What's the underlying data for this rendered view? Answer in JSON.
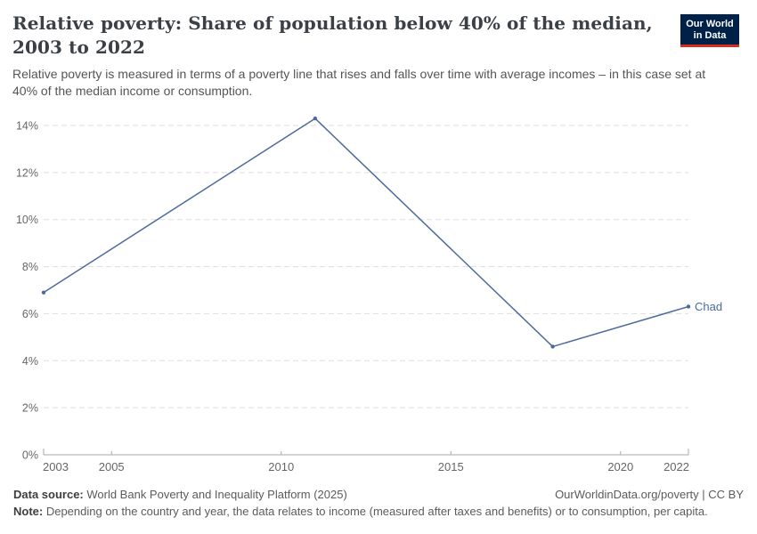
{
  "header": {
    "title": "Relative poverty: Share of population below 40% of the median, 2003 to 2022",
    "subtitle": "Relative poverty is measured in terms of a poverty line that rises and falls over time with average incomes – in this case set at 40% of the median income or consumption.",
    "logo": {
      "line1": "Our World",
      "line2": "in Data"
    }
  },
  "chart_data": {
    "type": "line",
    "title": "Relative poverty: Share of population below 40% of the median, 2003 to 2022",
    "xlabel": "",
    "ylabel": "",
    "x": [
      2003,
      2011,
      2018,
      2022
    ],
    "series": [
      {
        "name": "Chad",
        "color": "#4c6a9c",
        "values": [
          6.9,
          14.3,
          4.6,
          6.3
        ]
      }
    ],
    "x_ticks": [
      2003,
      2005,
      2010,
      2015,
      2020,
      2022
    ],
    "y_ticks": [
      0,
      2,
      4,
      6,
      8,
      10,
      12,
      14
    ],
    "y_tick_suffix": "%",
    "xlim": [
      2003,
      2022
    ],
    "ylim": [
      0,
      14
    ],
    "grid": "horizontal-dashed",
    "legend": "end-of-line-label"
  },
  "footer": {
    "datasource_label": "Data source:",
    "datasource_text": " World Bank Poverty and Inequality Platform (2025)",
    "note_label": "Note:",
    "note_text": " Depending on the country and year, the data relates to income (measured after taxes and benefits) or to consumption, per capita.",
    "link": "OurWorldinData.org/poverty | CC BY"
  },
  "colors": {
    "line": "#4c6a9c",
    "grid": "#dddddd",
    "axis": "#a8a8a8",
    "tick_text": "#666666"
  }
}
